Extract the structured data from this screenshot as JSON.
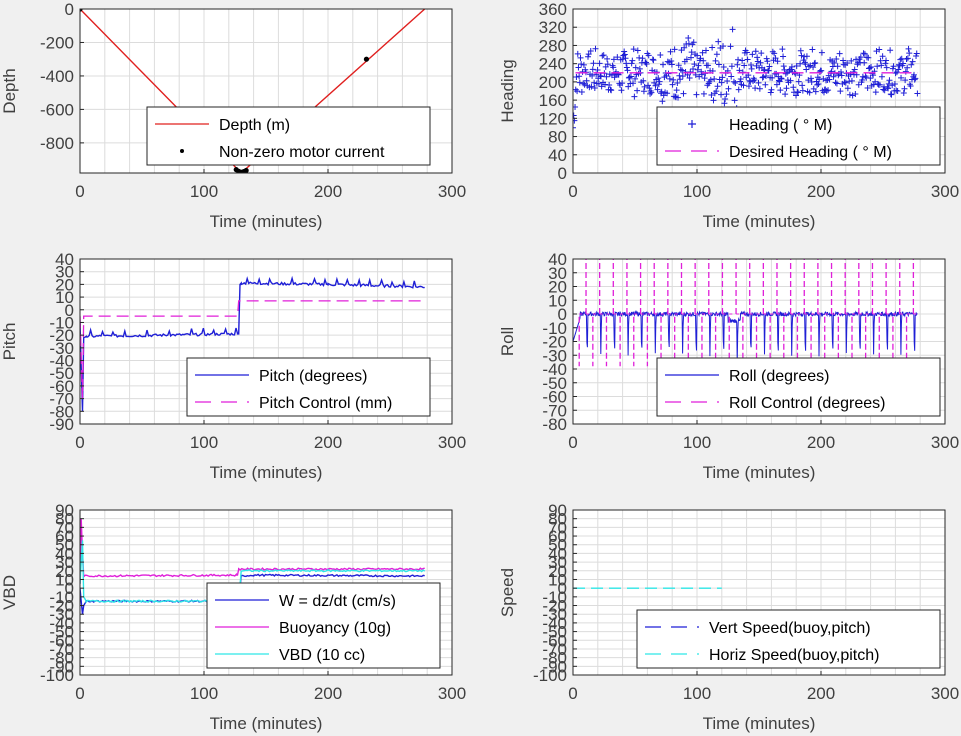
{
  "figure": {
    "background": "#f0f0f0",
    "colors": {
      "blue": "#1f1fd6",
      "magenta": "#e01fd9",
      "red": "#e0201f",
      "black": "#000000",
      "cyan": "#2ee6e6",
      "grid": "#dcdcdc"
    }
  },
  "chart_data": [
    {
      "id": "depth",
      "type": "line",
      "ylabel": "Depth",
      "xlabel": "Time (minutes)",
      "xlim": [
        0,
        300
      ],
      "ylim": [
        -980,
        0
      ],
      "xticks": [
        0,
        100,
        200,
        300
      ],
      "yticks": [
        0,
        -200,
        -400,
        -600,
        -800
      ],
      "series": [
        {
          "name": "Depth (m)",
          "kind": "line",
          "color": "#e0201f",
          "x": [
            0,
            130,
            278
          ],
          "y": [
            0,
            -980,
            0
          ]
        },
        {
          "name": "Non-zero motor current",
          "kind": "points",
          "color": "#000000",
          "x": [
            0,
            126,
            128,
            130,
            132,
            134,
            231
          ],
          "y": [
            0,
            -960,
            -970,
            -975,
            -972,
            -965,
            -300
          ]
        }
      ],
      "legend": {
        "position": "bottom-right"
      }
    },
    {
      "id": "heading",
      "type": "scatter",
      "ylabel": "Heading",
      "xlabel": "Time (minutes)",
      "xlim": [
        0,
        300
      ],
      "ylim": [
        0,
        360
      ],
      "xticks": [
        0,
        100,
        200,
        300
      ],
      "yticks": [
        0,
        40,
        80,
        120,
        160,
        200,
        240,
        280,
        320,
        360
      ],
      "yticklabels": [
        "0",
        "40",
        "80",
        "120",
        "160",
        "200",
        "240",
        "280",
        "320",
        "360"
      ],
      "series": [
        {
          "name": "Heading (   ° M)",
          "kind": "plus",
          "color": "#1f1fd6",
          "x": [
            0,
            2,
            5,
            20,
            40,
            60,
            75,
            88,
            100,
            112,
            125,
            132,
            140,
            160,
            180,
            200,
            220,
            240,
            260,
            278
          ],
          "y": [
            100,
            230,
            220,
            215,
            225,
            220,
            180,
            160,
            250,
            200,
            280,
            240,
            210,
            220,
            215,
            210,
            220,
            215,
            220,
            220
          ]
        },
        {
          "name": "Desired Heading (     ° M)",
          "kind": "dash",
          "color": "#e01fd9",
          "x": [
            2,
            278
          ],
          "y": [
            220,
            220
          ]
        }
      ],
      "legend": {
        "position": "bottom-right"
      }
    },
    {
      "id": "pitch",
      "type": "line",
      "ylabel": "Pitch",
      "xlabel": "Time (minutes)",
      "xlim": [
        0,
        300
      ],
      "ylim": [
        -90,
        40
      ],
      "xticks": [
        0,
        100,
        200,
        300
      ],
      "yticks": [
        40,
        30,
        20,
        10,
        0,
        -10,
        -20,
        -30,
        -40,
        -50,
        -60,
        -70,
        -80,
        -90
      ],
      "series": [
        {
          "name": "Pitch (degrees)",
          "kind": "line",
          "color": "#1f1fd6",
          "x": [
            0,
            2,
            3,
            5,
            127,
            128,
            129,
            130,
            200,
            278
          ],
          "y": [
            -10,
            -80,
            -22,
            -21,
            -19,
            -19,
            20,
            21,
            20,
            18
          ]
        },
        {
          "name": "Pitch Control (mm)",
          "kind": "dash",
          "color": "#e01fd9",
          "x": [
            0,
            2,
            3,
            127,
            128,
            278
          ],
          "y": [
            -5,
            -70,
            -5,
            -5,
            7,
            7
          ]
        }
      ],
      "legend": {
        "position": "bottom-right"
      }
    },
    {
      "id": "roll",
      "type": "line",
      "ylabel": "Roll",
      "xlabel": "Time (minutes)",
      "xlim": [
        0,
        300
      ],
      "ylim": [
        -80,
        40
      ],
      "xticks": [
        0,
        100,
        200,
        300
      ],
      "yticks": [
        40,
        30,
        20,
        10,
        0,
        -10,
        -20,
        -30,
        -40,
        -50,
        -60,
        -70,
        -80
      ],
      "series": [
        {
          "name": "Roll (degrees)",
          "kind": "line",
          "color": "#1f1fd6",
          "x": [
            0,
            5,
            278
          ],
          "y": [
            0,
            2,
            0
          ]
        },
        {
          "name": "Roll Control (degrees)",
          "kind": "dash",
          "color": "#e01fd9",
          "x": [
            0,
            278
          ],
          "y": [
            0,
            0
          ]
        }
      ],
      "legend": {
        "position": "bottom-right"
      }
    },
    {
      "id": "vbd",
      "type": "line",
      "ylabel": "VBD",
      "xlabel": "Time (minutes)",
      "xlim": [
        0,
        300
      ],
      "ylim": [
        -100,
        90
      ],
      "xticks": [
        0,
        100,
        200,
        300
      ],
      "yticks": [
        90,
        80,
        70,
        60,
        50,
        40,
        30,
        20,
        10,
        0,
        -10,
        -20,
        -30,
        -40,
        -50,
        -60,
        -70,
        -80,
        -90,
        -100
      ],
      "yticklabels": [
        "90",
        "80",
        "70",
        "60",
        "50",
        "40",
        "30",
        "20",
        "10",
        "0",
        "-10",
        "-20",
        "-30",
        "-40",
        "-50",
        "-60",
        "-70",
        "-80",
        "-90",
        "-100"
      ],
      "series": [
        {
          "name": "W = dz/dt (cm/s)",
          "kind": "line",
          "color": "#1f1fd6",
          "x": [
            0,
            2,
            3,
            5,
            126,
            128,
            130,
            140,
            278
          ],
          "y": [
            0,
            -30,
            -20,
            -15,
            -15,
            -12,
            14,
            15,
            14
          ]
        },
        {
          "name": "Buoyancy (10g)",
          "kind": "line",
          "color": "#e01fd9",
          "x": [
            0,
            1,
            2,
            3,
            126,
            127,
            128,
            278
          ],
          "y": [
            5,
            80,
            40,
            14,
            15,
            15,
            22,
            22
          ]
        },
        {
          "name": "VBD (10 cc)",
          "kind": "line",
          "color": "#2ee6e6",
          "x": [
            0,
            2,
            3,
            5,
            126,
            128,
            130,
            278
          ],
          "y": [
            5,
            55,
            -10,
            -15,
            -15,
            -15,
            20,
            20
          ]
        }
      ],
      "legend": {
        "position": "bottom-right"
      }
    },
    {
      "id": "speed",
      "type": "line",
      "ylabel": "Speed",
      "xlabel": "Time (minutes)",
      "xlim": [
        0,
        300
      ],
      "ylim": [
        -100,
        90
      ],
      "xticks": [
        0,
        100,
        200,
        300
      ],
      "yticks": [
        90,
        80,
        70,
        60,
        50,
        40,
        30,
        20,
        10,
        0,
        -10,
        -20,
        -30,
        -40,
        -50,
        -60,
        -70,
        -80,
        -90,
        -100
      ],
      "yticklabels": [
        "90",
        "80",
        "70",
        "60",
        "50",
        "40",
        "30",
        "20",
        "10",
        "0",
        "-10",
        "-20",
        "-30",
        "-40",
        "-50",
        "-60",
        "-70",
        "-80",
        "-90",
        "-100"
      ],
      "series": [
        {
          "name": "Vert Speed(buoy,pitch)",
          "kind": "dash",
          "color": "#1f1fd6",
          "x": [],
          "y": []
        },
        {
          "name": "Horiz Speed(buoy,pitch)",
          "kind": "dash",
          "color": "#2ee6e6",
          "x": [
            0,
            120
          ],
          "y": [
            0,
            0
          ]
        }
      ],
      "legend": {
        "position": "bottom-right"
      }
    }
  ]
}
